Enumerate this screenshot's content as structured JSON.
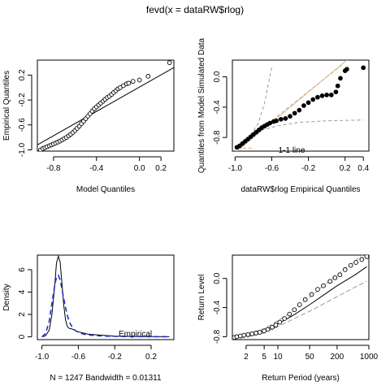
{
  "title": "fevd(x = dataRW$rlog)",
  "chart_data": [
    {
      "id": "qq",
      "type": "scatter",
      "xlabel": "Model Quantiles",
      "ylabel": "Empirical Quantiles",
      "xlim": [
        -0.95,
        0.32
      ],
      "ylim": [
        -1.02,
        0.44
      ],
      "xticks": [
        -0.8,
        -0.4,
        0.0,
        0.2
      ],
      "xticklabels": [
        "-0.8",
        "-0.4",
        "0.0",
        "0.2"
      ],
      "yticks": [
        -1.0,
        -0.6,
        -0.2,
        0.2
      ],
      "yticklabels": [
        "-1.0",
        "-0.6",
        "-0.2",
        "0.2"
      ],
      "ref_line": [
        [
          -0.95,
          -0.92
        ],
        [
          0.32,
          0.32
        ]
      ],
      "points": [
        [
          -0.92,
          -1.0
        ],
        [
          -0.9,
          -0.98
        ],
        [
          -0.88,
          -0.965
        ],
        [
          -0.86,
          -0.95
        ],
        [
          -0.84,
          -0.935
        ],
        [
          -0.82,
          -0.92
        ],
        [
          -0.8,
          -0.905
        ],
        [
          -0.78,
          -0.89
        ],
        [
          -0.76,
          -0.875
        ],
        [
          -0.74,
          -0.86
        ],
        [
          -0.72,
          -0.84
        ],
        [
          -0.7,
          -0.82
        ],
        [
          -0.68,
          -0.8
        ],
        [
          -0.66,
          -0.775
        ],
        [
          -0.64,
          -0.75
        ],
        [
          -0.62,
          -0.72
        ],
        [
          -0.6,
          -0.69
        ],
        [
          -0.58,
          -0.655
        ],
        [
          -0.56,
          -0.62
        ],
        [
          -0.54,
          -0.58
        ],
        [
          -0.52,
          -0.54
        ],
        [
          -0.5,
          -0.5
        ],
        [
          -0.48,
          -0.46
        ],
        [
          -0.46,
          -0.42
        ],
        [
          -0.44,
          -0.38
        ],
        [
          -0.42,
          -0.34
        ],
        [
          -0.4,
          -0.31
        ],
        [
          -0.38,
          -0.28
        ],
        [
          -0.36,
          -0.25
        ],
        [
          -0.34,
          -0.22
        ],
        [
          -0.32,
          -0.19
        ],
        [
          -0.3,
          -0.16
        ],
        [
          -0.28,
          -0.14
        ],
        [
          -0.26,
          -0.11
        ],
        [
          -0.24,
          -0.08
        ],
        [
          -0.22,
          -0.05
        ],
        [
          -0.2,
          -0.02
        ],
        [
          -0.18,
          0.0
        ],
        [
          -0.15,
          0.03
        ],
        [
          -0.12,
          0.06
        ],
        [
          -0.1,
          0.07
        ],
        [
          -0.06,
          0.1
        ],
        [
          0.0,
          0.12
        ],
        [
          0.08,
          0.18
        ],
        [
          0.28,
          0.4
        ]
      ]
    },
    {
      "id": "sim",
      "type": "scatter",
      "xlabel": "dataRW$rlog Empirical Quantiles",
      "ylabel": "Quantiles from Model Simulated Data",
      "xlim": [
        -1.03,
        0.46
      ],
      "ylim": [
        -0.98,
        0.22
      ],
      "xticks": [
        -1.0,
        -0.6,
        -0.2,
        0.2,
        0.4
      ],
      "xticklabels": [
        "-1.0",
        "-0.6",
        "-0.2",
        "0.2",
        "0.4"
      ],
      "yticks": [
        -0.8,
        -0.4,
        0.0
      ],
      "yticklabels": [
        "-0.8",
        "-0.4",
        "0.0"
      ],
      "annotation": "1-1 line",
      "one_to_one": [
        [
          -1.0,
          -1.0
        ],
        [
          0.42,
          0.42
        ]
      ],
      "orange_upper": [
        [
          -0.98,
          -0.94
        ],
        [
          0.16,
          0.15
        ]
      ],
      "orange_lower": [
        [
          -0.98,
          -0.94
        ],
        [
          -0.8,
          -0.94
        ]
      ],
      "grey_upper": [
        [
          -0.97,
          -0.92
        ],
        [
          -0.85,
          -0.8
        ],
        [
          -0.75,
          -0.62
        ],
        [
          -0.68,
          -0.35
        ],
        [
          -0.63,
          -0.05
        ],
        [
          -0.6,
          0.12
        ]
      ],
      "grey_lower": [
        [
          -0.97,
          -0.92
        ],
        [
          -0.85,
          -0.8
        ],
        [
          -0.7,
          -0.7
        ],
        [
          -0.55,
          -0.65
        ],
        [
          -0.3,
          -0.6
        ],
        [
          0.0,
          -0.58
        ],
        [
          0.4,
          -0.57
        ]
      ],
      "points": [
        [
          -0.98,
          -0.93
        ],
        [
          -0.95,
          -0.91
        ],
        [
          -0.92,
          -0.88
        ],
        [
          -0.89,
          -0.85
        ],
        [
          -0.86,
          -0.82
        ],
        [
          -0.83,
          -0.79
        ],
        [
          -0.8,
          -0.76
        ],
        [
          -0.77,
          -0.73
        ],
        [
          -0.74,
          -0.7
        ],
        [
          -0.71,
          -0.67
        ],
        [
          -0.68,
          -0.65
        ],
        [
          -0.65,
          -0.63
        ],
        [
          -0.62,
          -0.61
        ],
        [
          -0.58,
          -0.59
        ],
        [
          -0.55,
          -0.58
        ],
        [
          -0.5,
          -0.56
        ],
        [
          -0.45,
          -0.55
        ],
        [
          -0.4,
          -0.52
        ],
        [
          -0.35,
          -0.48
        ],
        [
          -0.3,
          -0.44
        ],
        [
          -0.25,
          -0.38
        ],
        [
          -0.2,
          -0.34
        ],
        [
          -0.15,
          -0.3
        ],
        [
          -0.1,
          -0.27
        ],
        [
          -0.05,
          -0.25
        ],
        [
          0.0,
          -0.24
        ],
        [
          0.05,
          -0.24
        ],
        [
          0.1,
          -0.2
        ],
        [
          0.12,
          -0.12
        ],
        [
          0.15,
          -0.02
        ],
        [
          0.2,
          0.08
        ],
        [
          0.22,
          0.1
        ],
        [
          0.4,
          0.12
        ]
      ]
    },
    {
      "id": "density",
      "type": "line",
      "xlabel": "N = 1247   Bandwidth = 0.01311",
      "ylabel": "Density",
      "xlim": [
        -1.05,
        0.45
      ],
      "ylim": [
        -0.25,
        7.3
      ],
      "xticks": [
        -1.0,
        -0.6,
        -0.2,
        0.2
      ],
      "xticklabels": [
        "-1.0",
        "-0.6",
        "-0.2",
        "0.2"
      ],
      "yticks": [
        0,
        2,
        4,
        6
      ],
      "yticklabels": [
        "0",
        "2",
        "4",
        "6"
      ],
      "legend": "Empirical",
      "empirical": [
        [
          -1.0,
          0.0
        ],
        [
          -0.96,
          0.1
        ],
        [
          -0.92,
          0.6
        ],
        [
          -0.89,
          2.0
        ],
        [
          -0.86,
          4.5
        ],
        [
          -0.84,
          6.6
        ],
        [
          -0.82,
          7.2
        ],
        [
          -0.8,
          6.7
        ],
        [
          -0.78,
          4.8
        ],
        [
          -0.76,
          2.8
        ],
        [
          -0.74,
          1.5
        ],
        [
          -0.72,
          0.9
        ],
        [
          -0.7,
          0.75
        ],
        [
          -0.67,
          0.7
        ],
        [
          -0.64,
          0.6
        ],
        [
          -0.6,
          0.45
        ],
        [
          -0.55,
          0.35
        ],
        [
          -0.5,
          0.25
        ],
        [
          -0.4,
          0.18
        ],
        [
          -0.3,
          0.12
        ],
        [
          -0.2,
          0.06
        ],
        [
          0.0,
          0.03
        ],
        [
          0.2,
          0.02
        ],
        [
          0.4,
          0.01
        ]
      ],
      "model": [
        [
          -1.0,
          0.0
        ],
        [
          -0.96,
          0.3
        ],
        [
          -0.92,
          1.4
        ],
        [
          -0.89,
          3.0
        ],
        [
          -0.86,
          4.6
        ],
        [
          -0.84,
          5.3
        ],
        [
          -0.82,
          5.5
        ],
        [
          -0.8,
          5.1
        ],
        [
          -0.78,
          4.3
        ],
        [
          -0.76,
          3.4
        ],
        [
          -0.74,
          2.6
        ],
        [
          -0.72,
          1.9
        ],
        [
          -0.7,
          1.35
        ],
        [
          -0.67,
          0.9
        ],
        [
          -0.64,
          0.6
        ],
        [
          -0.6,
          0.4
        ],
        [
          -0.55,
          0.26
        ],
        [
          -0.5,
          0.18
        ],
        [
          -0.4,
          0.1
        ],
        [
          -0.3,
          0.06
        ],
        [
          -0.2,
          0.04
        ],
        [
          0.0,
          0.02
        ],
        [
          0.2,
          0.01
        ],
        [
          0.4,
          0.005
        ]
      ]
    },
    {
      "id": "return",
      "type": "scatter",
      "xlabel": "Return Period (years)",
      "ylabel": "Return Level",
      "xscale": "log",
      "xlim": [
        1,
        1000
      ],
      "ylim": [
        -0.84,
        0.32
      ],
      "xticks": [
        2,
        5,
        10,
        50,
        200,
        1000
      ],
      "xticklabels": [
        "2",
        "5",
        "10",
        "50",
        "200",
        "1000"
      ],
      "yticks": [
        -0.8,
        -0.4,
        0.0
      ],
      "yticklabels": [
        "-0.8",
        "-0.4",
        "0.0"
      ],
      "points": [
        [
          1.0,
          -0.82
        ],
        [
          1.1,
          -0.81
        ],
        [
          1.25,
          -0.8
        ],
        [
          1.5,
          -0.79
        ],
        [
          1.8,
          -0.78
        ],
        [
          2.2,
          -0.77
        ],
        [
          2.7,
          -0.76
        ],
        [
          3.3,
          -0.75
        ],
        [
          4.0,
          -0.74
        ],
        [
          5.0,
          -0.72
        ],
        [
          6.0,
          -0.7
        ],
        [
          7.5,
          -0.67
        ],
        [
          9.0,
          -0.64
        ],
        [
          11,
          -0.6
        ],
        [
          14,
          -0.55
        ],
        [
          18,
          -0.49
        ],
        [
          23,
          -0.43
        ],
        [
          30,
          -0.36
        ],
        [
          40,
          -0.29
        ],
        [
          55,
          -0.22
        ],
        [
          75,
          -0.15
        ],
        [
          100,
          -0.1
        ],
        [
          140,
          -0.04
        ],
        [
          180,
          0.01
        ],
        [
          230,
          0.05
        ],
        [
          300,
          0.12
        ],
        [
          400,
          0.18
        ],
        [
          520,
          0.22
        ],
        [
          700,
          0.26
        ],
        [
          900,
          0.3
        ]
      ],
      "central": [
        [
          1,
          -0.82
        ],
        [
          2,
          -0.79
        ],
        [
          5,
          -0.72
        ],
        [
          10,
          -0.62
        ],
        [
          20,
          -0.52
        ],
        [
          50,
          -0.36
        ],
        [
          100,
          -0.23
        ],
        [
          200,
          -0.1
        ],
        [
          500,
          0.05
        ],
        [
          900,
          0.16
        ]
      ],
      "ci_upper": [
        [
          1,
          -0.81
        ],
        [
          2,
          -0.77
        ],
        [
          5,
          -0.69
        ],
        [
          10,
          -0.58
        ],
        [
          20,
          -0.46
        ],
        [
          50,
          -0.26
        ],
        [
          100,
          -0.1
        ],
        [
          200,
          0.05
        ],
        [
          500,
          0.24
        ],
        [
          900,
          0.38
        ]
      ],
      "ci_lower": [
        [
          1,
          -0.83
        ],
        [
          2,
          -0.81
        ],
        [
          5,
          -0.75
        ],
        [
          10,
          -0.66
        ],
        [
          20,
          -0.57
        ],
        [
          50,
          -0.45
        ],
        [
          100,
          -0.35
        ],
        [
          200,
          -0.25
        ],
        [
          500,
          -0.12
        ],
        [
          900,
          -0.04
        ]
      ]
    }
  ]
}
